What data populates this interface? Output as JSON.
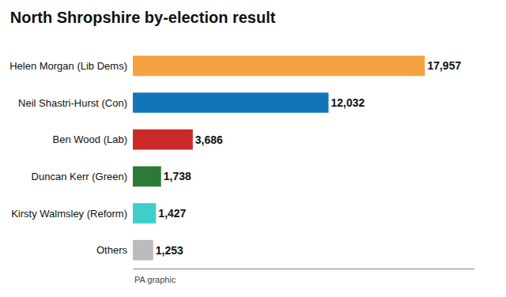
{
  "chart_data": {
    "type": "bar",
    "orientation": "horizontal",
    "title": "North Shropshire by-election result",
    "categories": [
      "Helen Morgan (Lib Dems)",
      "Neil Shastri-Hurst (Con)",
      "Ben Wood (Lab)",
      "Duncan Kerr (Green)",
      "Kirsty Walmsley (Reform)",
      "Others"
    ],
    "values": [
      17957,
      12032,
      3686,
      1738,
      1427,
      1253
    ],
    "value_labels": [
      "17,957",
      "12,032",
      "3,686",
      "1,738",
      "1,427",
      "1,253"
    ],
    "colors": [
      "#F5A340",
      "#1474B8",
      "#CC2929",
      "#2D7A36",
      "#3ECFCA",
      "#BBBBBB"
    ],
    "xlim": [
      0,
      21000
    ],
    "data_labels": true,
    "tick_labels": "y",
    "grid": false,
    "annotations": [
      "PA graphic"
    ]
  }
}
